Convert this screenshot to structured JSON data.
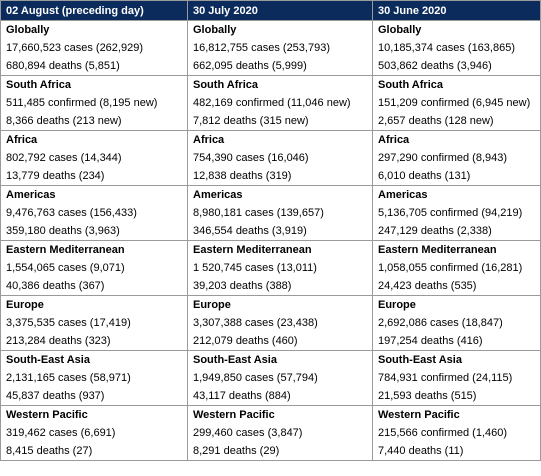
{
  "headers": [
    "02 August (preceding day)",
    "30 July 2020",
    "30 June 2020"
  ],
  "rows": [
    {
      "type": "region",
      "cells": [
        "Globally",
        "Globally",
        "Globally"
      ]
    },
    {
      "type": "data",
      "cells": [
        "17,660,523 cases (262,929)",
        "16,812,755 cases (253,793)",
        "10,185,374 cases (163,865)"
      ]
    },
    {
      "type": "data",
      "cells": [
        "680,894 deaths (5,851)",
        "662,095 deaths (5,999)",
        "503,862 deaths (3,946)"
      ]
    },
    {
      "type": "region",
      "cells": [
        "South Africa",
        "South Africa",
        "South Africa"
      ]
    },
    {
      "type": "data",
      "cells": [
        "511,485 confirmed (8,195 new)",
        "482,169 confirmed (11,046 new)",
        "151,209 confirmed (6,945 new)"
      ]
    },
    {
      "type": "data",
      "cells": [
        "8,366 deaths (213 new)",
        "7,812 deaths (315 new)",
        "2,657 deaths (128 new)"
      ]
    },
    {
      "type": "region",
      "cells": [
        "Africa",
        "Africa",
        "Africa"
      ]
    },
    {
      "type": "data",
      "cells": [
        "802,792 cases (14,344)",
        "754,390 cases (16,046)",
        "297,290 confirmed (8,943)"
      ]
    },
    {
      "type": "data",
      "cells": [
        "13,779 deaths (234)",
        "12,838 deaths (319)",
        "6,010 deaths (131)"
      ]
    },
    {
      "type": "region",
      "cells": [
        "Americas",
        "Americas",
        "Americas"
      ]
    },
    {
      "type": "data",
      "cells": [
        "9,476,763 cases (156,433)",
        "8,980,181 cases (139,657)",
        "5,136,705 confirmed (94,219)"
      ]
    },
    {
      "type": "data",
      "cells": [
        "359,180 deaths (3,963)",
        "346,554 deaths (3,919)",
        "247,129 deaths (2,338)"
      ]
    },
    {
      "type": "region",
      "cells": [
        "Eastern Mediterranean",
        "Eastern Mediterranean",
        "Eastern Mediterranean"
      ]
    },
    {
      "type": "data",
      "cells": [
        "1,554,065 cases (9,071)",
        "1 520,745 cases (13,011)",
        "1,058,055 confirmed (16,281)"
      ]
    },
    {
      "type": "data",
      "cells": [
        "40,386 deaths (367)",
        "39,203 deaths (388)",
        "24,423 deaths (535)"
      ]
    },
    {
      "type": "region",
      "cells": [
        "Europe",
        "Europe",
        "Europe"
      ]
    },
    {
      "type": "data",
      "cells": [
        "3,375,535 cases (17,419)",
        "3,307,388 cases (23,438)",
        "2,692,086 cases (18,847)"
      ]
    },
    {
      "type": "data",
      "cells": [
        "213,284 deaths (323)",
        "212,079 deaths (460)",
        "197,254 deaths (416)"
      ]
    },
    {
      "type": "region",
      "cells": [
        "South-East Asia",
        "South-East Asia",
        "South-East Asia"
      ]
    },
    {
      "type": "data",
      "cells": [
        "2,131,165 cases (58,971)",
        "1,949,850 cases (57,794)",
        "784,931 confirmed (24,115)"
      ]
    },
    {
      "type": "data",
      "cells": [
        "45,837 deaths (937)",
        "43,117 deaths (884)",
        "21,593 deaths (515)"
      ]
    },
    {
      "type": "region",
      "cells": [
        "Western Pacific",
        "Western Pacific",
        "Western Pacific"
      ]
    },
    {
      "type": "data",
      "cells": [
        "319,462 cases (6,691)",
        "299,460 cases (3,847)",
        "215,566 confirmed (1,460)"
      ]
    },
    {
      "type": "data",
      "cells": [
        "8,415 deaths (27)",
        "8,291 deaths (29)",
        "7,440 deaths (11)"
      ]
    }
  ],
  "colors": {
    "header_bg": "#0b2b5c",
    "header_text": "#ffffff",
    "border": "#9a9a9a"
  }
}
